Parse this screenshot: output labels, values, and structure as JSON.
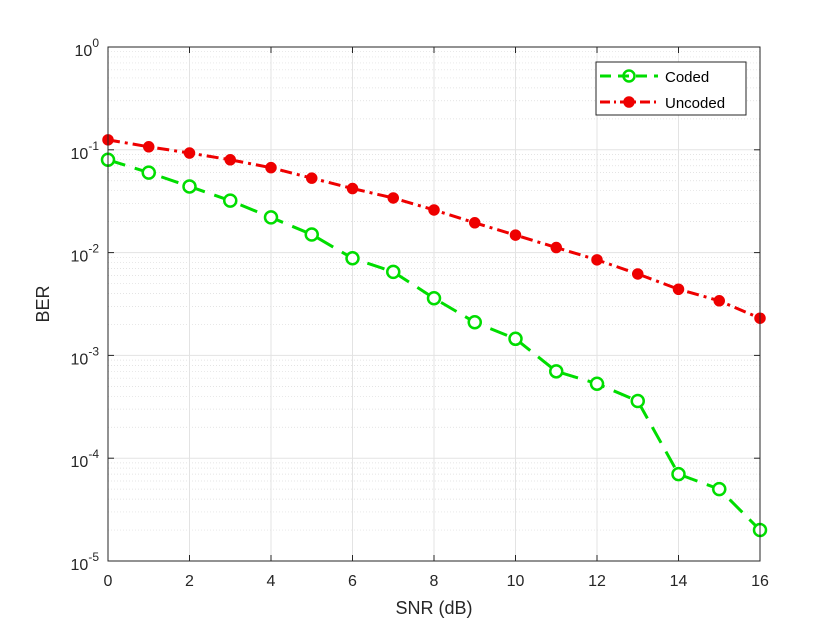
{
  "chart_data": {
    "type": "line",
    "title": "",
    "xlabel": "SNR (dB)",
    "ylabel": "BER",
    "xlim": [
      0,
      16
    ],
    "ylim": [
      1e-05,
      1
    ],
    "yscale": "log",
    "grid": true,
    "minor_grid": true,
    "legend_position": "top-right",
    "x_ticks": [
      0,
      2,
      4,
      6,
      8,
      10,
      12,
      14,
      16
    ],
    "x_tick_labels": [
      "0",
      "2",
      "4",
      "6",
      "8",
      "10",
      "12",
      "14",
      "16"
    ],
    "y_tick_labels": [
      {
        "value": 1,
        "base": "10",
        "exp": "0"
      },
      {
        "value": 0.1,
        "base": "10",
        "exp": "-1"
      },
      {
        "value": 0.01,
        "base": "10",
        "exp": "-2"
      },
      {
        "value": 0.001,
        "base": "10",
        "exp": "-3"
      },
      {
        "value": 0.0001,
        "base": "10",
        "exp": "-4"
      },
      {
        "value": 1e-05,
        "base": "10",
        "exp": "-5"
      }
    ],
    "x": [
      0,
      1,
      2,
      3,
      4,
      5,
      6,
      7,
      8,
      9,
      10,
      11,
      12,
      13,
      14,
      15,
      16
    ],
    "series": [
      {
        "name": "Coded",
        "color": "#00dd00",
        "line_style": "dashed",
        "marker": "open-circle",
        "values": [
          0.08,
          0.06,
          0.044,
          0.032,
          0.022,
          0.015,
          0.0088,
          0.0065,
          0.0036,
          0.0021,
          0.00145,
          0.0007,
          0.00053,
          0.00036,
          7e-05,
          5e-05,
          2e-05
        ]
      },
      {
        "name": "Uncoded",
        "color": "#ee0000",
        "line_style": "dash-dot",
        "marker": "filled-circle",
        "values": [
          0.125,
          0.107,
          0.093,
          0.08,
          0.067,
          0.053,
          0.042,
          0.034,
          0.026,
          0.0195,
          0.0148,
          0.0112,
          0.0085,
          0.0062,
          0.0044,
          0.0034,
          0.0023
        ]
      }
    ]
  }
}
